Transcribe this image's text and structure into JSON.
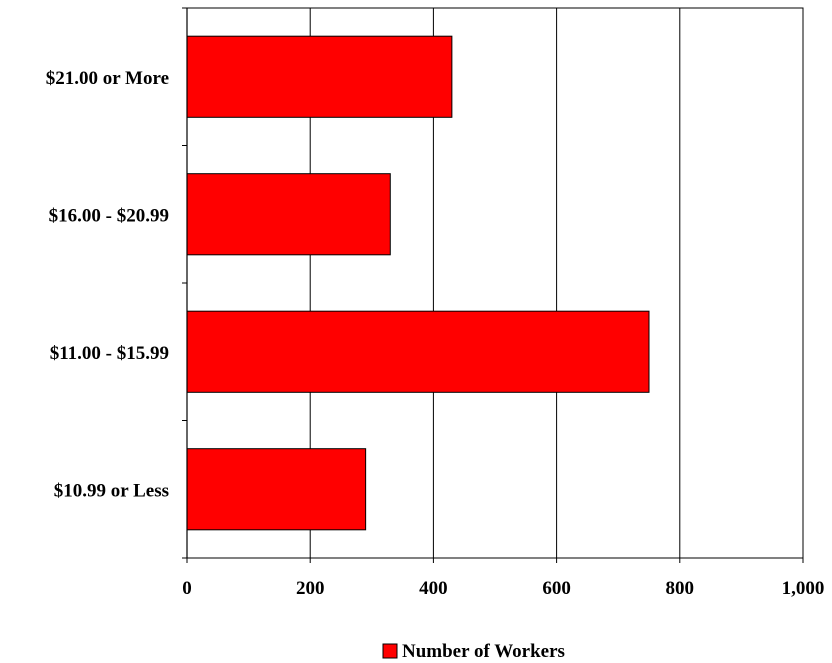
{
  "chart_data": {
    "type": "bar",
    "orientation": "horizontal",
    "categories": [
      "$21.00 or More",
      "$16.00 - $20.99",
      "$11.00 - $15.99",
      "$10.99 or Less"
    ],
    "series": [
      {
        "name": "Number of Workers",
        "values": [
          430,
          330,
          750,
          290
        ],
        "color": "#ff0000"
      }
    ],
    "xlim": [
      0,
      1000
    ],
    "x_ticks": [
      "0",
      "200",
      "400",
      "600",
      "800",
      "1,000"
    ],
    "x_tick_values": [
      0,
      200,
      400,
      600,
      800,
      1000
    ],
    "grid": "vertical",
    "legend": "bottom"
  }
}
